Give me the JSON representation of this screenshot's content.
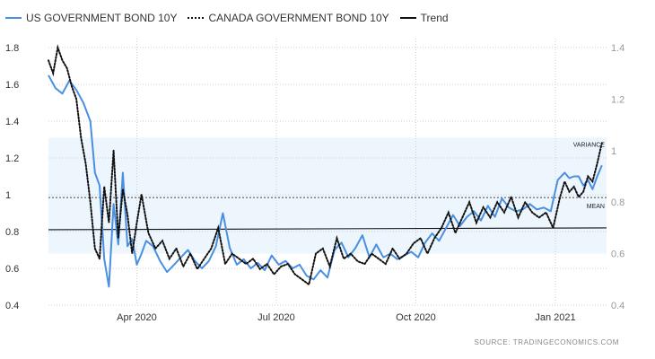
{
  "colors": {
    "us": "#4a90e2",
    "canada": "#111111",
    "trend": "#111111",
    "band": "#eef6fd",
    "grid": "#cfcfcf"
  },
  "legend": {
    "us": "US GOVERNMENT BOND 10Y",
    "canada": "CANADA GOVERNMENT BOND 10Y",
    "trend": "Trend"
  },
  "source": "SOURCE:  TRADINGECONOMICS.COM",
  "chart_data": {
    "type": "line",
    "x_labels": [
      "Apr 2020",
      "Jul 2020",
      "Oct 2020",
      "Jan 2021"
    ],
    "x_label_positions": [
      1.9,
      4.9,
      7.9,
      10.9
    ],
    "xlim": [
      0,
      12
    ],
    "left_axis": {
      "ylim": [
        0.4,
        1.8
      ],
      "ticks": [
        "0.4",
        "0.6",
        "0.8",
        "1",
        "1.2",
        "1.4",
        "1.6",
        "1.8"
      ]
    },
    "right_axis": {
      "ylim": [
        0.4,
        1.4
      ],
      "ticks": [
        "0.4",
        "0.6",
        "0.8",
        "1",
        "1.2",
        "1.4"
      ]
    },
    "annotations": {
      "variance": "VARIANCE",
      "mean": "MEAN"
    },
    "variance_band": [
      0.68,
      1.31
    ],
    "mean_line": 0.985,
    "trend": {
      "y": [
        0.81,
        0.82
      ]
    },
    "series": [
      {
        "name": "US GOVERNMENT BOND 10Y",
        "axis": "left",
        "style": "solid",
        "x": [
          0,
          0.15,
          0.3,
          0.45,
          0.6,
          0.75,
          0.9,
          1.0,
          1.1,
          1.2,
          1.3,
          1.4,
          1.5,
          1.6,
          1.7,
          1.8,
          1.9,
          2.0,
          2.1,
          2.25,
          2.4,
          2.55,
          2.7,
          2.85,
          3.0,
          3.15,
          3.3,
          3.45,
          3.6,
          3.75,
          3.9,
          4.05,
          4.2,
          4.35,
          4.5,
          4.65,
          4.8,
          4.95,
          5.1,
          5.25,
          5.4,
          5.55,
          5.7,
          5.85,
          6.0,
          6.15,
          6.3,
          6.45,
          6.6,
          6.75,
          6.9,
          7.05,
          7.2,
          7.35,
          7.5,
          7.65,
          7.8,
          7.95,
          8.1,
          8.25,
          8.4,
          8.55,
          8.7,
          8.85,
          9.0,
          9.15,
          9.3,
          9.45,
          9.6,
          9.75,
          9.9,
          10.05,
          10.2,
          10.35,
          10.5,
          10.65,
          10.8,
          10.95,
          11.1,
          11.2,
          11.3,
          11.4,
          11.5,
          11.6,
          11.7,
          11.8,
          11.9
        ],
        "y": [
          1.65,
          1.58,
          1.55,
          1.62,
          1.57,
          1.5,
          1.4,
          1.12,
          1.05,
          0.65,
          0.5,
          0.95,
          0.73,
          1.12,
          0.72,
          0.76,
          0.62,
          0.68,
          0.75,
          0.72,
          0.64,
          0.58,
          0.62,
          0.66,
          0.7,
          0.64,
          0.6,
          0.64,
          0.72,
          0.9,
          0.71,
          0.62,
          0.65,
          0.6,
          0.63,
          0.59,
          0.67,
          0.62,
          0.64,
          0.6,
          0.62,
          0.56,
          0.54,
          0.59,
          0.55,
          0.7,
          0.74,
          0.66,
          0.71,
          0.78,
          0.66,
          0.73,
          0.66,
          0.68,
          0.65,
          0.67,
          0.69,
          0.66,
          0.74,
          0.79,
          0.75,
          0.82,
          0.89,
          0.83,
          0.88,
          0.91,
          0.86,
          0.94,
          0.88,
          0.98,
          0.93,
          0.91,
          0.92,
          0.95,
          0.92,
          0.93,
          0.91,
          1.08,
          1.12,
          1.09,
          1.1,
          1.1,
          1.05,
          1.08,
          1.03,
          1.1,
          1.16
        ]
      },
      {
        "name": "CANADA GOVERNMENT BOND 10Y",
        "axis": "right",
        "style": "dotted",
        "x": [
          0,
          0.1,
          0.2,
          0.3,
          0.4,
          0.5,
          0.6,
          0.7,
          0.8,
          0.9,
          1.0,
          1.1,
          1.2,
          1.3,
          1.4,
          1.5,
          1.6,
          1.7,
          1.8,
          1.9,
          2.0,
          2.15,
          2.3,
          2.45,
          2.6,
          2.75,
          2.9,
          3.05,
          3.2,
          3.35,
          3.5,
          3.65,
          3.8,
          3.95,
          4.1,
          4.25,
          4.4,
          4.55,
          4.7,
          4.85,
          5.0,
          5.15,
          5.3,
          5.45,
          5.6,
          5.75,
          5.9,
          6.05,
          6.2,
          6.35,
          6.5,
          6.65,
          6.8,
          6.95,
          7.1,
          7.25,
          7.4,
          7.55,
          7.7,
          7.85,
          8.0,
          8.15,
          8.3,
          8.45,
          8.6,
          8.75,
          8.9,
          9.05,
          9.2,
          9.35,
          9.5,
          9.65,
          9.8,
          9.95,
          10.1,
          10.25,
          10.4,
          10.55,
          10.7,
          10.85,
          11.0,
          11.1,
          11.2,
          11.3,
          11.4,
          11.5,
          11.6,
          11.7,
          11.8,
          11.9
        ],
        "y": [
          1.35,
          1.3,
          1.4,
          1.35,
          1.32,
          1.25,
          1.2,
          1.05,
          0.95,
          0.8,
          0.62,
          0.58,
          0.86,
          0.72,
          1.0,
          0.66,
          0.85,
          0.75,
          0.6,
          0.72,
          0.83,
          0.68,
          0.62,
          0.65,
          0.58,
          0.62,
          0.55,
          0.6,
          0.54,
          0.58,
          0.62,
          0.7,
          0.56,
          0.6,
          0.58,
          0.56,
          0.58,
          0.54,
          0.56,
          0.52,
          0.55,
          0.56,
          0.52,
          0.5,
          0.48,
          0.6,
          0.62,
          0.55,
          0.66,
          0.58,
          0.6,
          0.57,
          0.56,
          0.6,
          0.58,
          0.56,
          0.62,
          0.58,
          0.6,
          0.64,
          0.66,
          0.6,
          0.66,
          0.7,
          0.76,
          0.68,
          0.74,
          0.8,
          0.72,
          0.78,
          0.74,
          0.8,
          0.76,
          0.82,
          0.74,
          0.8,
          0.76,
          0.74,
          0.76,
          0.7,
          0.82,
          0.88,
          0.84,
          0.86,
          0.82,
          0.84,
          0.9,
          0.88,
          0.95,
          1.03
        ]
      }
    ]
  }
}
